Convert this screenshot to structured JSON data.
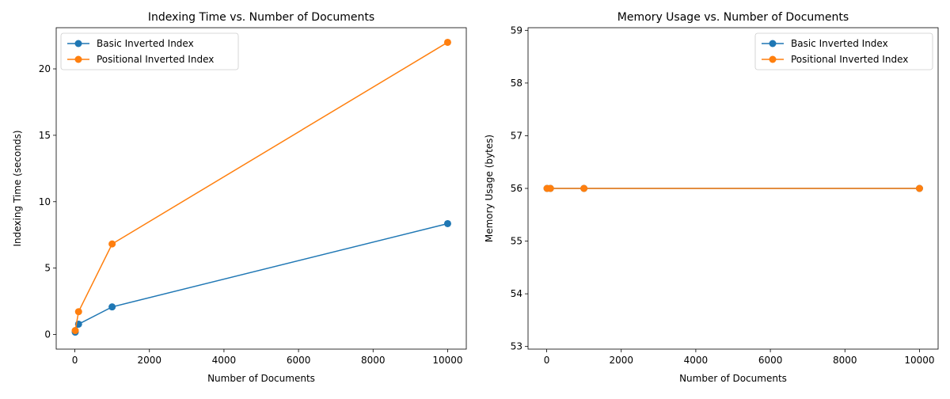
{
  "colors": {
    "basic": "#1f77b4",
    "positional": "#ff7f0e"
  },
  "chart_data": [
    {
      "type": "line",
      "title": "Indexing Time vs. Number of Documents",
      "xlabel": "Number of Documents",
      "ylabel": "Indexing Time (seconds)",
      "xlim": [
        -500,
        10500
      ],
      "ylim": [
        -1.1,
        23.1
      ],
      "xticks": [
        0,
        2000,
        4000,
        6000,
        8000,
        10000
      ],
      "xtick_labels": [
        "0",
        "2000",
        "4000",
        "6000",
        "8000",
        "10000"
      ],
      "yticks": [
        0,
        5,
        10,
        15,
        20
      ],
      "ytick_labels": [
        "0",
        "5",
        "10",
        "15",
        "20"
      ],
      "legend_position": "upper-left",
      "grid": false,
      "series": [
        {
          "name": "Basic Inverted Index",
          "color": "#1f77b4",
          "marker": "circle",
          "x": [
            10,
            100,
            1000,
            10000
          ],
          "y": [
            0.18,
            0.78,
            2.08,
            8.35
          ]
        },
        {
          "name": "Positional Inverted Index",
          "color": "#ff7f0e",
          "marker": "circle",
          "x": [
            10,
            100,
            1000,
            10000
          ],
          "y": [
            0.3,
            1.72,
            6.82,
            22.0
          ]
        }
      ]
    },
    {
      "type": "line",
      "title": "Memory Usage vs. Number of Documents",
      "xlabel": "Number of Documents",
      "ylabel": "Memory Usage (bytes)",
      "xlim": [
        -500,
        10500
      ],
      "ylim": [
        52.95,
        59.05
      ],
      "xticks": [
        0,
        2000,
        4000,
        6000,
        8000,
        10000
      ],
      "xtick_labels": [
        "0",
        "2000",
        "4000",
        "6000",
        "8000",
        "10000"
      ],
      "yticks": [
        53,
        54,
        55,
        56,
        57,
        58,
        59
      ],
      "ytick_labels": [
        "53",
        "54",
        "55",
        "56",
        "57",
        "58",
        "59"
      ],
      "legend_position": "upper-right",
      "grid": false,
      "series": [
        {
          "name": "Basic Inverted Index",
          "color": "#1f77b4",
          "marker": "circle",
          "x": [
            10,
            100,
            1000,
            10000
          ],
          "y": [
            56,
            56,
            56,
            56
          ]
        },
        {
          "name": "Positional Inverted Index",
          "color": "#ff7f0e",
          "marker": "circle",
          "x": [
            10,
            100,
            1000,
            10000
          ],
          "y": [
            56,
            56,
            56,
            56
          ]
        }
      ]
    }
  ]
}
